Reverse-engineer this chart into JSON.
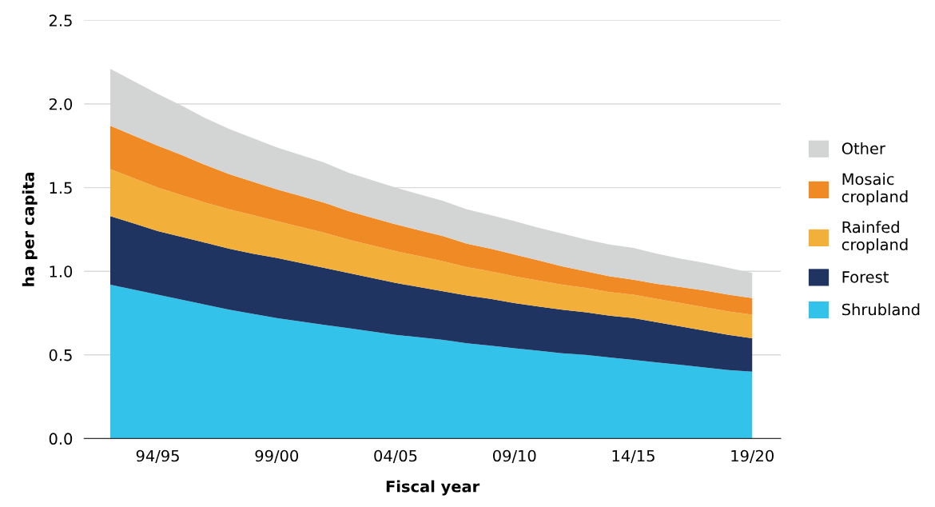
{
  "chart_data": {
    "type": "area",
    "stacked": true,
    "xlabel": "Fiscal year",
    "ylabel": "ha per capita",
    "categories": [
      null,
      null,
      "94/95",
      null,
      null,
      null,
      null,
      "99/00",
      null,
      null,
      null,
      null,
      "04/05",
      null,
      null,
      null,
      null,
      "09/10",
      null,
      null,
      null,
      null,
      "14/15",
      null,
      null,
      null,
      null,
      "19/20"
    ],
    "ylim": [
      0,
      2.5
    ],
    "yticks": [
      {
        "value": 0,
        "label": "0.0"
      },
      {
        "value": 0.5,
        "label": "0.5"
      },
      {
        "value": 1,
        "label": "1.0"
      },
      {
        "value": 1.5,
        "label": "1.5"
      },
      {
        "value": 2,
        "label": "2.0"
      },
      {
        "value": 2.5,
        "label": "2.5"
      }
    ],
    "grid": "y",
    "legend": "right",
    "series": [
      {
        "name": "Shrubland",
        "color": "#33c3ea",
        "values": [
          0.92,
          0.89,
          0.86,
          0.83,
          0.8,
          0.77,
          0.745,
          0.72,
          0.7,
          0.68,
          0.66,
          0.64,
          0.62,
          0.605,
          0.59,
          0.57,
          0.555,
          0.54,
          0.525,
          0.51,
          0.5,
          0.485,
          0.47,
          0.455,
          0.44,
          0.425,
          0.41,
          0.4
        ]
      },
      {
        "name": "Forest",
        "color": "#1f3461",
        "values": [
          0.41,
          0.395,
          0.38,
          0.375,
          0.37,
          0.365,
          0.36,
          0.36,
          0.35,
          0.34,
          0.33,
          0.32,
          0.31,
          0.3,
          0.29,
          0.285,
          0.28,
          0.27,
          0.265,
          0.26,
          0.255,
          0.25,
          0.25,
          0.24,
          0.23,
          0.22,
          0.21,
          0.2
        ]
      },
      {
        "name": "Rainfed\ncropland",
        "color": "#f2b03a",
        "values": [
          0.28,
          0.27,
          0.26,
          0.25,
          0.24,
          0.235,
          0.23,
          0.22,
          0.215,
          0.21,
          0.2,
          0.195,
          0.19,
          0.185,
          0.18,
          0.17,
          0.165,
          0.16,
          0.155,
          0.15,
          0.145,
          0.14,
          0.14,
          0.14,
          0.14,
          0.14,
          0.14,
          0.14
        ]
      },
      {
        "name": "Mosaic\ncropland",
        "color": "#f08a24",
        "values": [
          0.26,
          0.255,
          0.25,
          0.24,
          0.225,
          0.21,
          0.2,
          0.19,
          0.185,
          0.18,
          0.17,
          0.165,
          0.16,
          0.155,
          0.15,
          0.14,
          0.135,
          0.13,
          0.12,
          0.11,
          0.1,
          0.095,
          0.09,
          0.09,
          0.095,
          0.1,
          0.1,
          0.1
        ]
      },
      {
        "name": "Other",
        "color": "#d3d5d5",
        "values": [
          0.34,
          0.325,
          0.31,
          0.295,
          0.28,
          0.27,
          0.26,
          0.25,
          0.245,
          0.24,
          0.23,
          0.225,
          0.22,
          0.215,
          0.21,
          0.205,
          0.2,
          0.2,
          0.195,
          0.195,
          0.19,
          0.19,
          0.19,
          0.18,
          0.17,
          0.165,
          0.16,
          0.15
        ]
      }
    ]
  }
}
